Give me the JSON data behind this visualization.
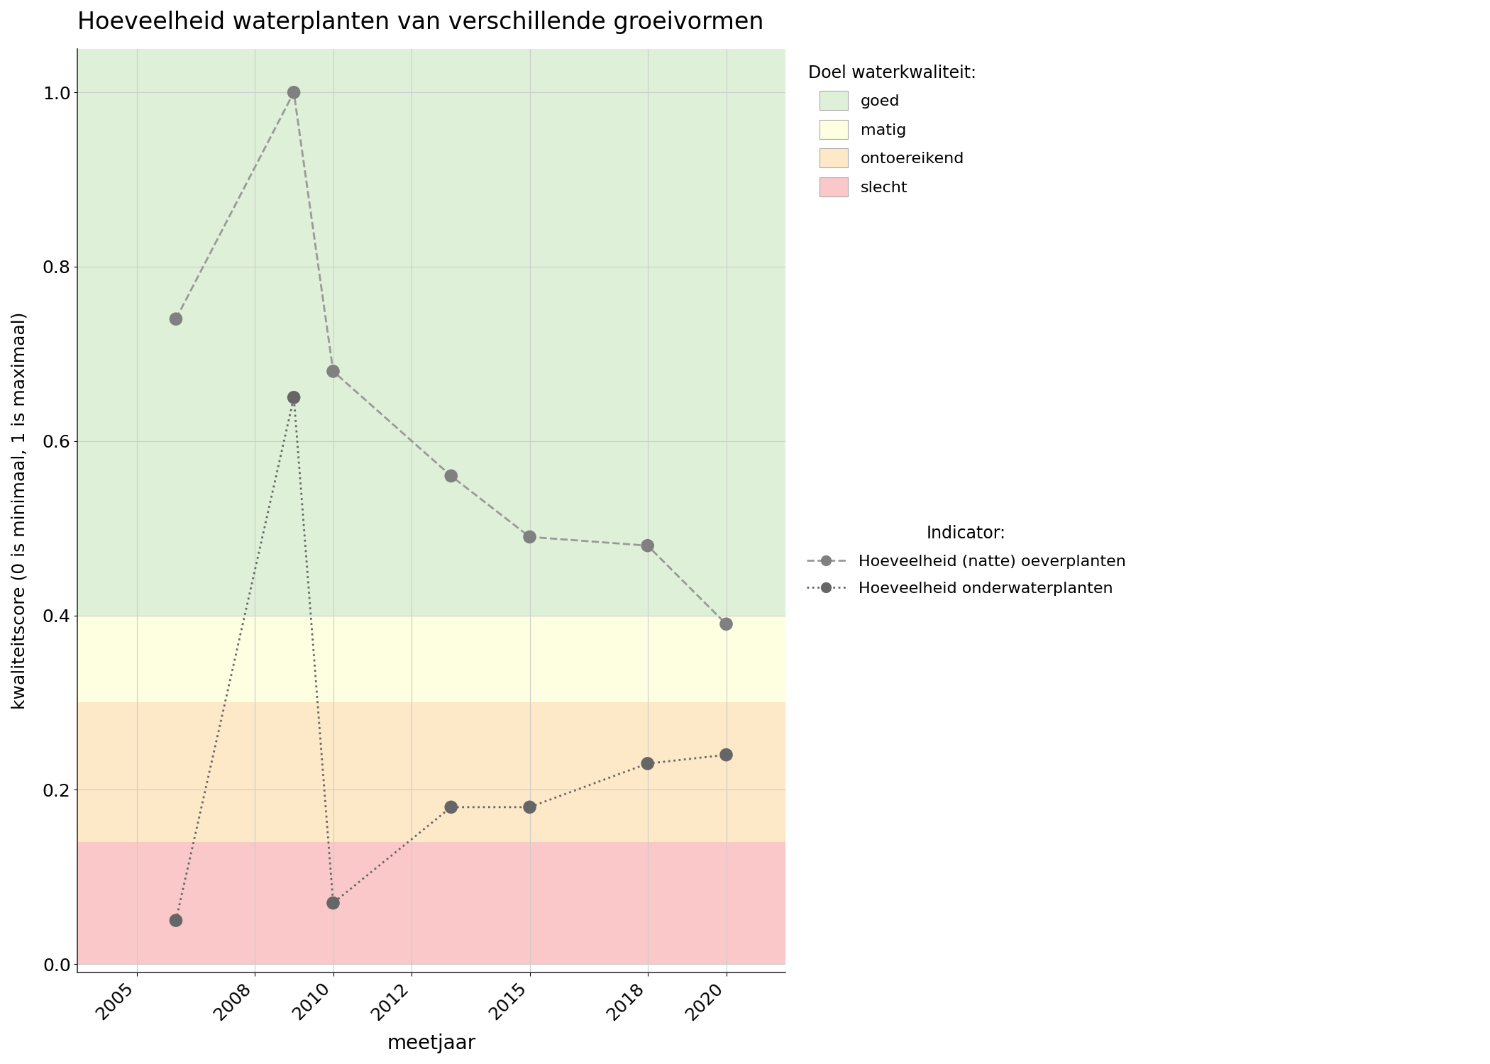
{
  "title": "Hoeveelheid waterplanten van verschillende groeivormen",
  "xlabel": "meetjaar",
  "ylabel": "kwaliteitscore (0 is minimaal, 1 is maximaal)",
  "xlim": [
    2003.5,
    2021.5
  ],
  "ylim": [
    -0.01,
    1.05
  ],
  "xticks": [
    2005,
    2008,
    2010,
    2012,
    2015,
    2018,
    2020
  ],
  "yticks": [
    0.0,
    0.2,
    0.4,
    0.6,
    0.8,
    1.0
  ],
  "oeverplanten_x": [
    2006,
    2009,
    2010,
    2013,
    2015,
    2018,
    2020
  ],
  "oeverplanten_y": [
    0.74,
    1.0,
    0.68,
    0.56,
    0.49,
    0.48,
    0.39
  ],
  "onderwaterplanten_x": [
    2006,
    2009,
    2010,
    2013,
    2015,
    2018,
    2020
  ],
  "onderwaterplanten_y": [
    0.05,
    0.65,
    0.07,
    0.18,
    0.18,
    0.23,
    0.24
  ],
  "bg_colors": {
    "goed": "#dff0d8",
    "matig": "#fefee0",
    "ontoereikend": "#fde8c8",
    "slecht": "#fac8c8"
  },
  "bg_thresholds": {
    "goed_min": 0.4,
    "matig_min": 0.3,
    "ontoereikend_min": 0.14,
    "slecht_min": 0.0
  },
  "line_color_oever": "#999999",
  "line_color_onder": "#666666",
  "dot_color_oever": "#808080",
  "dot_color_onder": "#666666",
  "dot_size": 180,
  "legend_title_doel": "Doel waterkwaliteit:",
  "legend_title_indicator": "Indicator:",
  "legend_goed": "goed",
  "legend_matig": "matig",
  "legend_ontoereikend": "ontoereikend",
  "legend_slecht": "slecht",
  "legend_oever": "Hoeveelheid (natte) oeverplanten",
  "legend_onder": "Hoeveelheid onderwaterplanten",
  "bg_color_figure": "#ffffff",
  "grid_color": "#cccccc"
}
